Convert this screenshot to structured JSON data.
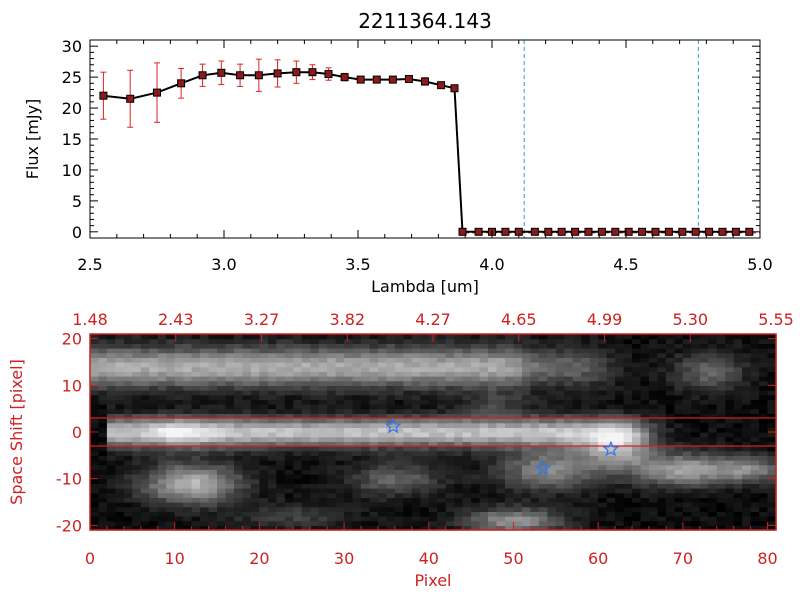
{
  "colors": {
    "axes": "#000000",
    "accent_red": "#cc2222",
    "marker": "#8b1a1a",
    "vline": "#3399cc",
    "star": "#3377ee"
  },
  "chart_data": [
    {
      "type": "line",
      "title": "2211364.143",
      "xlabel": "Lambda [um]",
      "ylabel": "Flux [mJy]",
      "xlim": [
        2.5,
        5.0
      ],
      "ylim": [
        -1,
        31
      ],
      "xticks": [
        "2.5",
        "3.0",
        "3.5",
        "4.0",
        "4.5",
        "5.0"
      ],
      "yticks": [
        "0",
        "5",
        "10",
        "15",
        "20",
        "25",
        "30"
      ],
      "series": [
        {
          "x": [
            2.55,
            2.65,
            2.75,
            2.84,
            2.92,
            2.99,
            3.06,
            3.13,
            3.2,
            3.27,
            3.33,
            3.39,
            3.45,
            3.51,
            3.57,
            3.63,
            3.69,
            3.75,
            3.81,
            3.86,
            3.89,
            3.95,
            4.0,
            4.05,
            4.1,
            4.16,
            4.21,
            4.26,
            4.31,
            4.36,
            4.41,
            4.46,
            4.51,
            4.56,
            4.61,
            4.66,
            4.71,
            4.76,
            4.81,
            4.86,
            4.91,
            4.96
          ],
          "y": [
            22.0,
            21.5,
            22.5,
            24.0,
            25.3,
            25.7,
            25.3,
            25.3,
            25.6,
            25.8,
            25.8,
            25.5,
            25.0,
            24.6,
            24.6,
            24.6,
            24.7,
            24.3,
            23.7,
            23.2,
            0,
            0,
            0,
            0,
            0,
            0,
            0,
            0,
            0,
            0,
            0,
            0,
            0,
            0,
            0,
            0,
            0,
            0,
            0,
            0,
            0,
            0
          ],
          "yerr": [
            3.8,
            4.6,
            4.8,
            2.4,
            1.8,
            1.9,
            1.8,
            2.6,
            2.2,
            1.8,
            1.2,
            1.0,
            0.6,
            0.5,
            0.4,
            0.4,
            0.5,
            0.6,
            0.4,
            0.3,
            0,
            0,
            0,
            0,
            0,
            0,
            0,
            0,
            0,
            0,
            0,
            0,
            0,
            0,
            0,
            0,
            0,
            0,
            0,
            0,
            0,
            0
          ]
        }
      ],
      "vlines": [
        4.12,
        4.77
      ],
      "grid": false
    },
    {
      "type": "heatmap",
      "xlabel": "Pixel",
      "ylabel": "Space Shift [pixel]",
      "xlim": [
        0,
        81
      ],
      "ylim": [
        -21,
        21
      ],
      "xticks": [
        "0",
        "10",
        "20",
        "30",
        "40",
        "50",
        "60",
        "70",
        "80"
      ],
      "yticks": [
        "-20",
        "-10",
        "0",
        "10",
        "20"
      ],
      "top_tick_labels": [
        "1.48",
        "2.43",
        "3.27",
        "3.82",
        "4.27",
        "4.65",
        "4.99",
        "5.30",
        "5.55"
      ],
      "hlines": [
        3,
        -3
      ],
      "stars": [
        {
          "x": 35.8,
          "y": 1.2
        },
        {
          "x": 53.5,
          "y": -7.8
        },
        {
          "x": 61.5,
          "y": -3.7
        }
      ]
    }
  ]
}
